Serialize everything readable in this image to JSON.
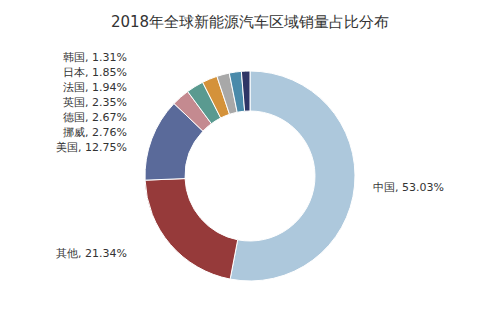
{
  "chart_data": {
    "type": "pie",
    "title": "2018年全球新能源汽车区域销量占比分布",
    "categories": [
      "中国",
      "其他",
      "美国",
      "挪威",
      "德国",
      "英国",
      "法国",
      "日本",
      "韩国"
    ],
    "values": [
      53.03,
      21.34,
      12.75,
      2.76,
      2.67,
      2.35,
      1.94,
      1.85,
      1.31
    ],
    "colors": [
      "#adc8dc",
      "#963a3a",
      "#5a6a9a",
      "#c48a90",
      "#5a9a90",
      "#d4923a",
      "#a8a8a8",
      "#4a8aaa",
      "#2e3566"
    ],
    "data_labels": true,
    "value_labels": [
      "中国, 53.03%",
      "其他, 21.34%",
      "美国, 12.75%",
      "挪威, 2.76%",
      "德国, 2.67%",
      "英国, 2.35%",
      "法国, 1.94%",
      "日本, 1.85%",
      "韩国, 1.31%"
    ]
  }
}
